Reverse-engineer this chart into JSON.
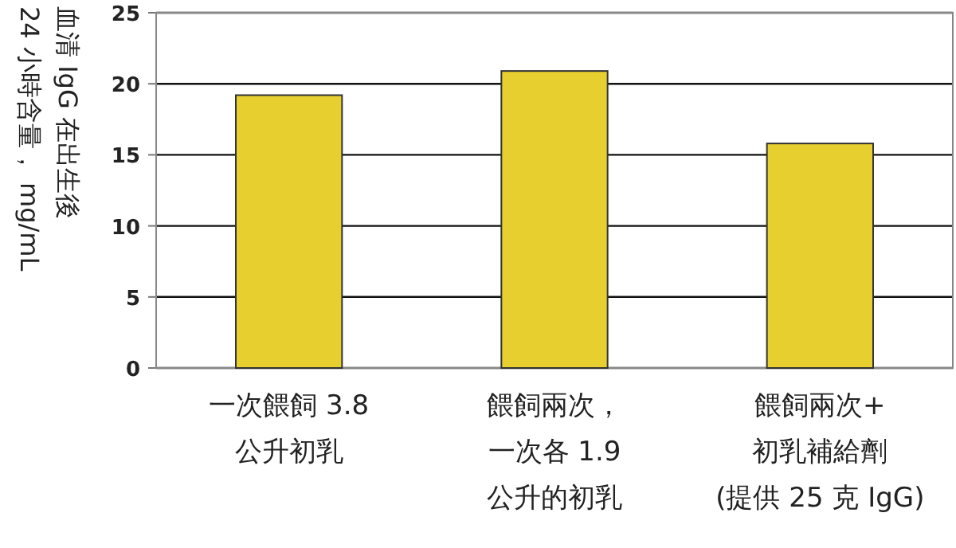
{
  "chart_data": {
    "type": "bar",
    "ylabel": "血清 IgG 在出生後\n24 小時含量， mg/mL",
    "categories": [
      "一次餵飼 3.8\n公升初乳",
      "餵飼兩次，一次各 1.9\n公升的初乳",
      "餵飼兩次+\n初乳補給劑\n(提供 25 克 IgG)"
    ],
    "values": [
      19.2,
      20.9,
      15.8
    ],
    "color": "#e6cf2e",
    "ylim": [
      0,
      25
    ],
    "yticks": [
      0,
      5,
      10,
      15,
      20,
      25
    ],
    "grid": "y"
  }
}
